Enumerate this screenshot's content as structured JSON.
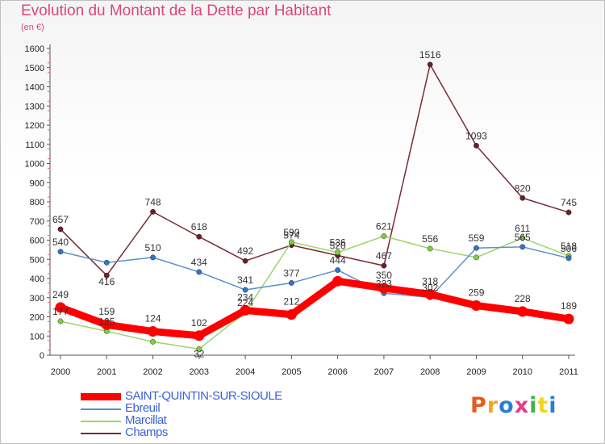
{
  "header": {
    "title": "Evolution du Montant de la Dette par Habitant",
    "subtitle": "(en €)"
  },
  "brand": {
    "text": "Proxiti",
    "colors": [
      "#e85a1b",
      "#f5a623",
      "#2a7fd4",
      "#e83a8a",
      "#3db54a",
      "#f5d31b",
      "#2a7fd4"
    ]
  },
  "chart_data": {
    "type": "line",
    "title": "Evolution du Montant de la Dette par Habitant",
    "subtitle": "(en €)",
    "xlabel": "",
    "ylabel": "",
    "x": [
      "2000",
      "2001",
      "2002",
      "2003",
      "2004",
      "2005",
      "2006",
      "2007",
      "2008",
      "2009",
      "2010",
      "2011"
    ],
    "ylim": [
      0,
      1600
    ],
    "yticks": [
      0,
      100,
      200,
      300,
      400,
      500,
      600,
      700,
      800,
      900,
      1000,
      1100,
      1200,
      1300,
      1400,
      1500,
      1600
    ],
    "grid": false,
    "legend": "bottom-left",
    "series": [
      {
        "name": "Champs",
        "color": "#7a2a33",
        "marker": "#6b1e28",
        "values": [
          657,
          416,
          748,
          618,
          492,
          574,
          520,
          467,
          1516,
          1093,
          820,
          745
        ],
        "labels": [
          "657",
          "416",
          "748",
          "618",
          "492",
          "574",
          "520",
          "467",
          "1516",
          "1093",
          "820",
          "745"
        ]
      },
      {
        "name": "Marcillat",
        "color": "#9ad66a",
        "marker": "#7ecf3a",
        "values": [
          177,
          125,
          70,
          32,
          224,
          590,
          536,
          621,
          556,
          510,
          611,
          518
        ],
        "labels": [
          "177",
          "125",
          "",
          "32",
          "224",
          "590",
          "536",
          "621",
          "556",
          "",
          "611",
          "518"
        ]
      },
      {
        "name": "Ebreuil",
        "color": "#5b8fcc",
        "marker": "#2f75c9",
        "values": [
          540,
          483,
          510,
          434,
          341,
          377,
          444,
          323,
          302,
          559,
          565,
          506
        ],
        "labels": [
          "540",
          "",
          "510",
          "434",
          "341",
          "377",
          "444",
          "323",
          "302",
          "559",
          "565",
          "506"
        ]
      },
      {
        "name": "SAINT-QUINTIN-SUR-SIOULE",
        "color": "#ff0000",
        "marker": "#ff0000",
        "values": [
          249,
          159,
          124,
          102,
          234,
          212,
          386,
          350,
          318,
          259,
          228,
          189
        ],
        "labels": [
          "249",
          "159",
          "124",
          "102",
          "234",
          "212",
          "",
          "350",
          "318",
          "259",
          "228",
          "189"
        ]
      }
    ]
  },
  "legend_items": [
    {
      "label": "SAINT-QUINTIN-SUR-SIOULE",
      "color": "#ff0000",
      "thickness": 9
    },
    {
      "label": "Ebreuil",
      "color": "#5b8fcc",
      "thickness": 2
    },
    {
      "label": "Marcillat",
      "color": "#9ad66a",
      "thickness": 2
    },
    {
      "label": "Champs",
      "color": "#7a2a33",
      "thickness": 2
    }
  ]
}
